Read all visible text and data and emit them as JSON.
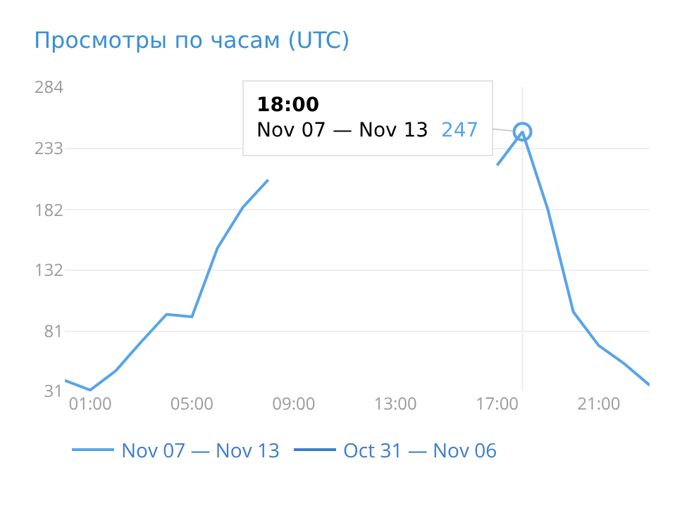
{
  "chart_data": {
    "type": "line",
    "title": "Просмотры по часам (UTC)",
    "x": [
      0,
      1,
      2,
      3,
      4,
      5,
      6,
      7,
      8,
      9,
      10,
      11,
      12,
      13,
      14,
      15,
      16,
      17,
      18,
      19,
      20,
      21,
      22,
      23
    ],
    "series": [
      {
        "name": "Nov 07 — Nov 13",
        "color": "#58a4e8",
        "values": [
          40,
          32,
          48,
          72,
          95,
          93,
          150,
          184,
          207,
          null,
          null,
          null,
          null,
          null,
          null,
          null,
          null,
          219,
          247,
          182,
          97,
          69,
          54,
          36
        ],
        "value_labels": [
          null,
          null,
          null,
          null,
          null,
          null,
          null,
          null,
          null,
          null,
          null,
          null,
          null,
          null,
          null,
          null,
          null,
          null,
          "247",
          null,
          null,
          null,
          null,
          null
        ]
      },
      {
        "name": "Oct 31 — Nov 06",
        "color": "#3d7ccc",
        "values": [
          null,
          null,
          null,
          null,
          null,
          null,
          null,
          null,
          null,
          null,
          null,
          null,
          null,
          null,
          null,
          null,
          null,
          null,
          null,
          null,
          null,
          null,
          null,
          null
        ]
      }
    ],
    "annotations": [
      "18:00"
    ],
    "ref_lines": [
      {
        "axis": "x",
        "value": 18,
        "color": "#eeeeee"
      }
    ],
    "xlim": [
      0,
      23
    ],
    "xticks": [
      {
        "value": 1,
        "label": "01:00"
      },
      {
        "value": 5,
        "label": "05:00"
      },
      {
        "value": 9,
        "label": "09:00"
      },
      {
        "value": 13,
        "label": "13:00"
      },
      {
        "value": 17,
        "label": "17:00"
      },
      {
        "value": 21,
        "label": "21:00"
      }
    ],
    "ylim": [
      31,
      284
    ],
    "yticks": [
      31,
      81,
      132,
      182,
      233,
      284
    ],
    "grid": "y",
    "legend": "bottom",
    "marker": "none",
    "line_style": "solid"
  }
}
